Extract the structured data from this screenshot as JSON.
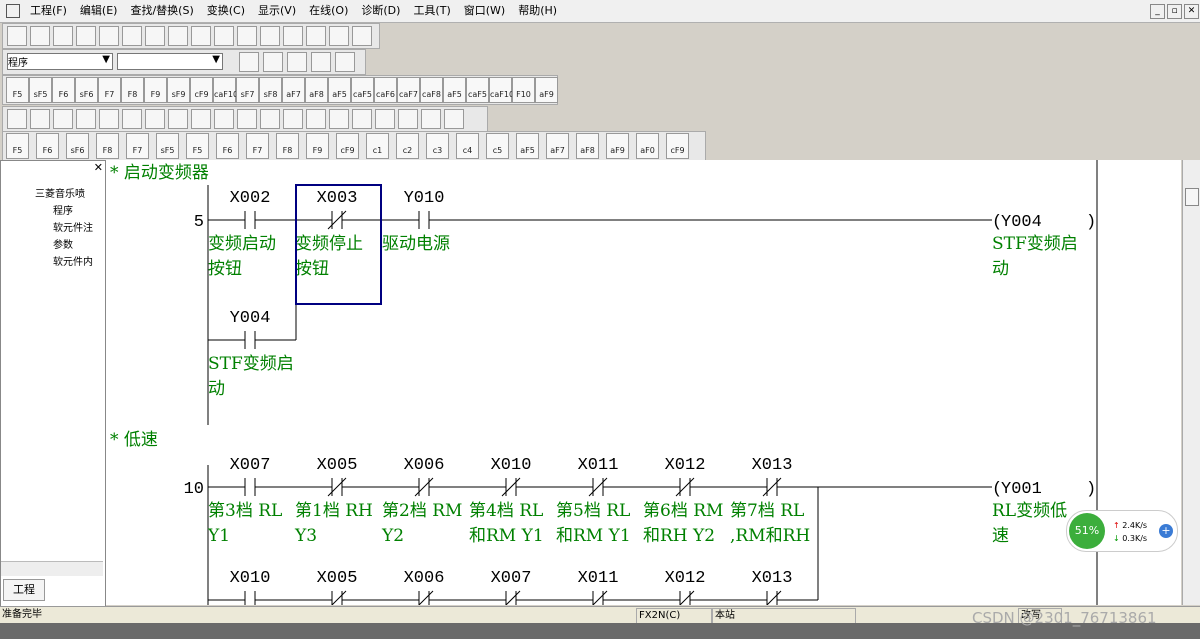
{
  "menu": [
    "工程(F)",
    "编辑(E)",
    "查找/替换(S)",
    "变换(C)",
    "显示(V)",
    "在线(O)",
    "诊断(D)",
    "工具(T)",
    "窗口(W)",
    "帮助(H)"
  ],
  "toolbar": {
    "program_select": "程序",
    "fkeys_row1": [
      "F5",
      "sF5",
      "F6",
      "sF6",
      "F7",
      "F8",
      "F9",
      "sF9",
      "cF9",
      "caF10",
      "sF7",
      "sF8",
      "aF7",
      "aF8",
      "aF5",
      "caF5",
      "caF6",
      "caF7",
      "caF8",
      "aF5",
      "caF5",
      "caF10",
      "F10",
      "aF9"
    ],
    "fkeys_row2": [
      "F5",
      "F6",
      "sF6",
      "F8",
      "F7",
      "sF5",
      "F5",
      "F6",
      "F7",
      "F8",
      "F9",
      "cF9",
      "c1",
      "c2",
      "c3",
      "c4",
      "c5",
      "aF5",
      "aF7",
      "aF8",
      "aF9",
      "aF0",
      "cF9"
    ]
  },
  "tree": {
    "root": "三菱音乐喷",
    "items": [
      "程序",
      "软元件注",
      "参数",
      "软元件内"
    ]
  },
  "tab": "工程",
  "ladder": {
    "rungs": [
      {
        "comment": "* 启动变频器",
        "step": "5",
        "contacts": [
          {
            "device": "X002",
            "nc": false,
            "comment": [
              "变频启动",
              "按钮"
            ]
          },
          {
            "device": "X003",
            "nc": true,
            "comment": [
              "变频停止",
              "按钮"
            ]
          },
          {
            "device": "Y010",
            "nc": false,
            "comment": [
              "驱动电源"
            ]
          }
        ],
        "branch": [
          {
            "device": "Y004",
            "nc": false,
            "comment": [
              "STF变频启",
              "动"
            ]
          }
        ],
        "coil": {
          "device": "Y004",
          "comment": [
            "STF变频启",
            "动"
          ]
        }
      },
      {
        "comment": "* 低速",
        "step": "10",
        "contacts": [
          {
            "device": "X007",
            "nc": false,
            "comment": [
              "第3档 RL",
              " Y1"
            ]
          },
          {
            "device": "X005",
            "nc": true,
            "comment": [
              "第1档 RH",
              " Y3"
            ]
          },
          {
            "device": "X006",
            "nc": true,
            "comment": [
              "第2档 RM",
              " Y2"
            ]
          },
          {
            "device": "X010",
            "nc": true,
            "comment": [
              "第4档 RL",
              "和RM Y1"
            ]
          },
          {
            "device": "X011",
            "nc": true,
            "comment": [
              "第5档 RL",
              "和RM Y1"
            ]
          },
          {
            "device": "X012",
            "nc": true,
            "comment": [
              "第6档 RM",
              "和RH Y2"
            ]
          },
          {
            "device": "X013",
            "nc": true,
            "comment": [
              "第7档 RL",
              ",RM和RH"
            ]
          }
        ],
        "branch": [
          {
            "device": "X010",
            "nc": false,
            "comment": []
          },
          {
            "device": "X005",
            "nc": true,
            "comment": []
          },
          {
            "device": "X006",
            "nc": true,
            "comment": []
          },
          {
            "device": "X007",
            "nc": true,
            "comment": []
          },
          {
            "device": "X011",
            "nc": true,
            "comment": []
          },
          {
            "device": "X012",
            "nc": true,
            "comment": []
          },
          {
            "device": "X013",
            "nc": true,
            "comment": []
          }
        ],
        "coil": {
          "device": "Y001",
          "comment": [
            "RL变频低",
            "速"
          ]
        }
      }
    ]
  },
  "status": {
    "message": "准备完毕",
    "plc": "FX2N(C)",
    "station": "本站",
    "mode": "改写"
  },
  "network": {
    "percent": "51%",
    "up": "2.4K/s",
    "down": "0.3K/s"
  },
  "watermark": "CSDN @2301_76713861"
}
